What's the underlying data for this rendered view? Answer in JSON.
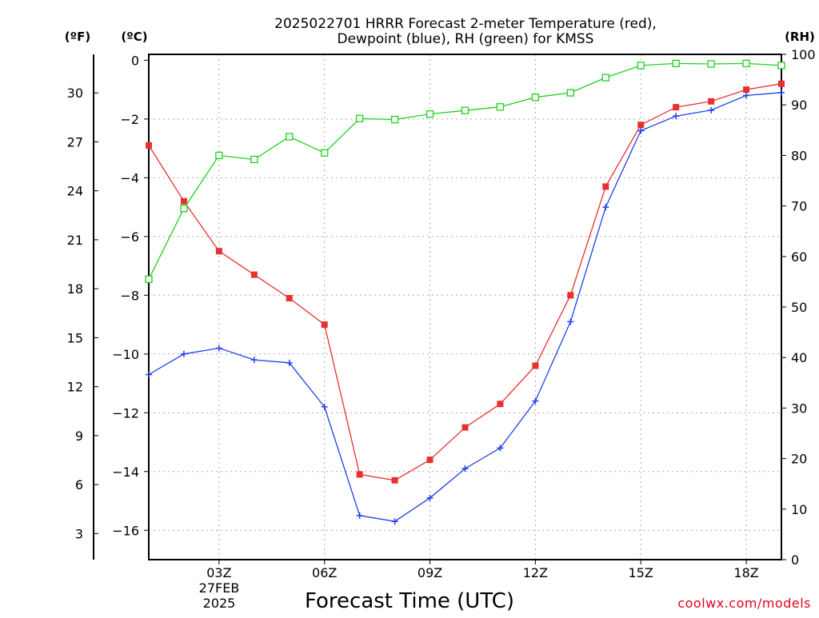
{
  "chart_data": {
    "type": "line",
    "title": [
      "2025022701 HRRR Forecast 2-meter Temperature (red),",
      "Dewpoint (blue), RH (green) for KMSS"
    ],
    "xlabel": "Forecast Time (UTC)",
    "date_label": [
      "27FEB",
      "2025"
    ],
    "credit": "coolwx.com/models",
    "unit_labels": {
      "left_f": "(ºF)",
      "left_c": "(ºC)",
      "right_rh": "(RH)"
    },
    "x_hours": [
      1,
      2,
      3,
      4,
      5,
      6,
      7,
      8,
      9,
      10,
      11,
      12,
      13,
      14,
      15,
      16,
      17,
      18,
      19
    ],
    "x_range": [
      1,
      19
    ],
    "x_ticks": [
      {
        "hour": 3,
        "label": "03Z"
      },
      {
        "hour": 6,
        "label": "06Z"
      },
      {
        "hour": 9,
        "label": "09Z"
      },
      {
        "hour": 12,
        "label": "12Z"
      },
      {
        "hour": 15,
        "label": "15Z"
      },
      {
        "hour": 18,
        "label": "18Z"
      }
    ],
    "celsius_axis": {
      "range": [
        -17,
        0.2
      ],
      "ticks": [
        0,
        -2,
        -4,
        -6,
        -8,
        -10,
        -12,
        -14,
        -16
      ],
      "labels": [
        "0",
        "−2",
        "−4",
        "−6",
        "−8",
        "−10",
        "−12",
        "−14",
        "−16"
      ]
    },
    "fahrenheit_axis": {
      "ticks": [
        3,
        6,
        9,
        12,
        15,
        18,
        21,
        24,
        27,
        30
      ]
    },
    "rh_axis": {
      "range": [
        0,
        100
      ],
      "ticks": [
        0,
        10,
        20,
        30,
        40,
        50,
        60,
        70,
        80,
        90,
        100
      ]
    },
    "grid": true,
    "series": [
      {
        "name": "Temperature",
        "color": "#e83030",
        "axis": "celsius",
        "marker": "filled-square",
        "values": [
          -2.9,
          -4.8,
          -6.5,
          -7.3,
          -8.1,
          -9.0,
          -14.1,
          -14.3,
          -13.6,
          -12.5,
          -11.7,
          -10.4,
          -8.0,
          -4.3,
          -2.2,
          -1.6,
          -1.4,
          -1.0,
          -0.8
        ]
      },
      {
        "name": "Dewpoint",
        "color": "#2040e8",
        "axis": "celsius",
        "marker": "plus",
        "values": [
          -10.7,
          -10.0,
          -9.8,
          -10.2,
          -10.3,
          -11.8,
          -15.5,
          -15.7,
          -14.9,
          -13.9,
          -13.2,
          -11.6,
          -8.9,
          -5.0,
          -2.4,
          -1.9,
          -1.7,
          -1.2,
          -1.1
        ]
      },
      {
        "name": "RH",
        "color": "#20d020",
        "axis": "rh",
        "marker": "open-square",
        "values": [
          55.5,
          69.5,
          80.0,
          79.2,
          83.7,
          80.5,
          87.3,
          87.1,
          88.2,
          88.9,
          89.6,
          91.5,
          92.4,
          95.4,
          97.8,
          98.2,
          98.1,
          98.2,
          97.8
        ]
      }
    ]
  }
}
